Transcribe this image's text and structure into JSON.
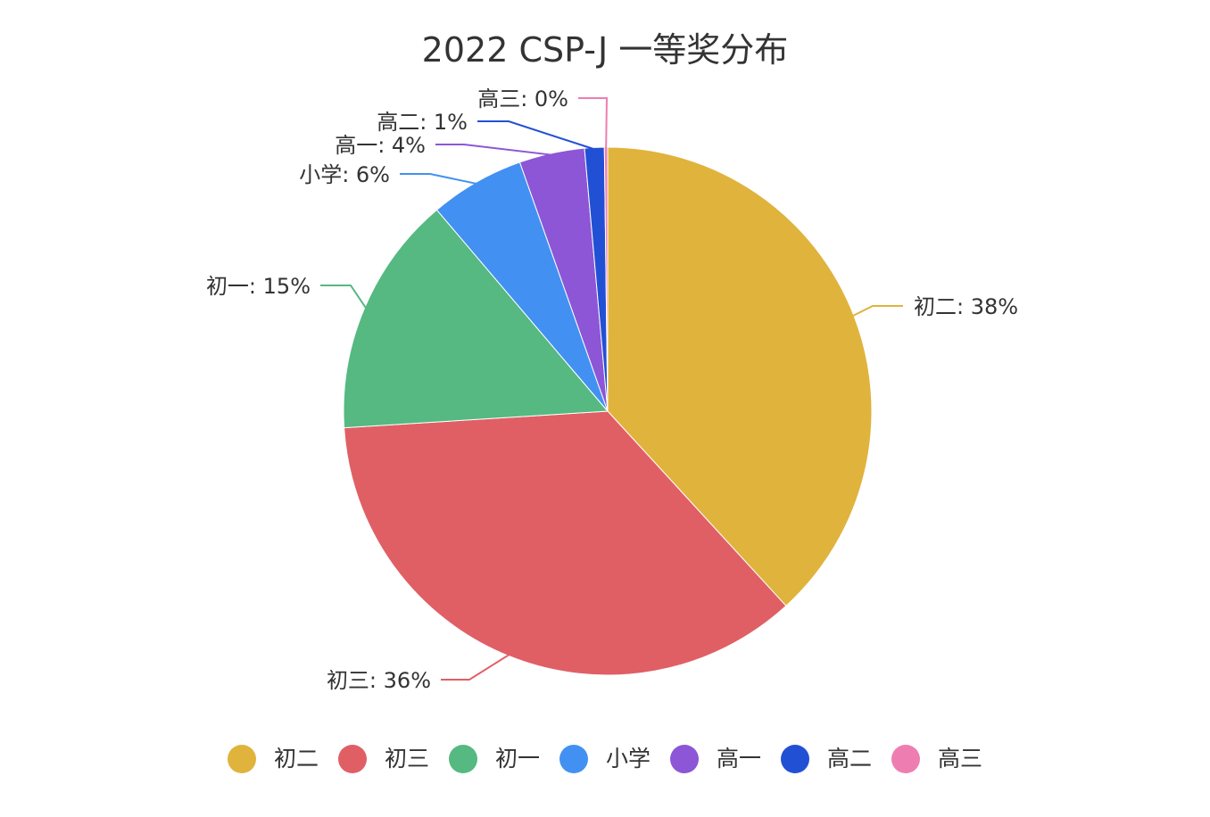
{
  "chart_data": {
    "type": "pie",
    "title": "2022 CSP-J 一等奖分布",
    "label_format": "{name}: {percent}%",
    "legend_position": "bottom",
    "slices": [
      {
        "name": "初二",
        "percent": 38,
        "value": 38.2,
        "color": "#E0B33D"
      },
      {
        "name": "初三",
        "percent": 36,
        "value": 35.8,
        "color": "#E05F65"
      },
      {
        "name": "初一",
        "percent": 15,
        "value": 14.8,
        "color": "#55B981"
      },
      {
        "name": "小学",
        "percent": 6,
        "value": 5.8,
        "color": "#4291F2"
      },
      {
        "name": "高一",
        "percent": 4,
        "value": 4.0,
        "color": "#8C56D6"
      },
      {
        "name": "高二",
        "percent": 1,
        "value": 1.2,
        "color": "#2250D5"
      },
      {
        "name": "高三",
        "percent": 0,
        "value": 0.2,
        "color": "#EE7EB2"
      }
    ]
  }
}
